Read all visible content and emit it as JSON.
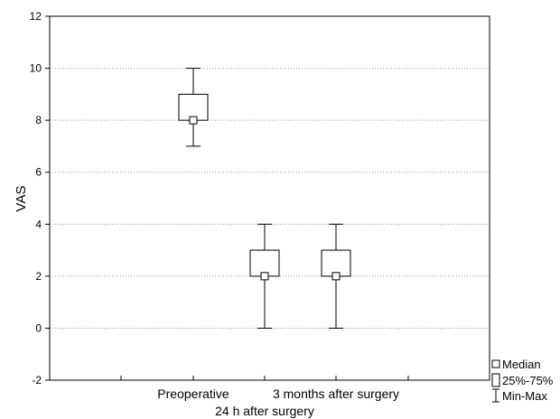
{
  "chart_data": {
    "type": "box",
    "title": "",
    "xlabel": "",
    "ylabel": "VAS",
    "ylim": [
      -2,
      12
    ],
    "yticks": [
      -2,
      0,
      2,
      4,
      6,
      8,
      10,
      12
    ],
    "grid": true,
    "legend_placement": "bottom-right",
    "categories": [
      "Preoperative",
      "24 h after surgery",
      "3 months after surgery"
    ],
    "boxes": [
      {
        "category": "Preoperative",
        "min": 7,
        "q1": 8,
        "median": 8,
        "q3": 9,
        "max": 10
      },
      {
        "category": "24 h after surgery",
        "min": 0,
        "q1": 2,
        "median": 2,
        "q3": 3,
        "max": 4
      },
      {
        "category": "3 months after surgery",
        "min": 0,
        "q1": 2,
        "median": 2,
        "q3": 3,
        "max": 4
      }
    ],
    "legend": [
      {
        "symbol": "median-square",
        "label": "Median"
      },
      {
        "symbol": "box",
        "label": "25%-75%"
      },
      {
        "symbol": "whisker",
        "label": "Min-Max"
      }
    ]
  }
}
